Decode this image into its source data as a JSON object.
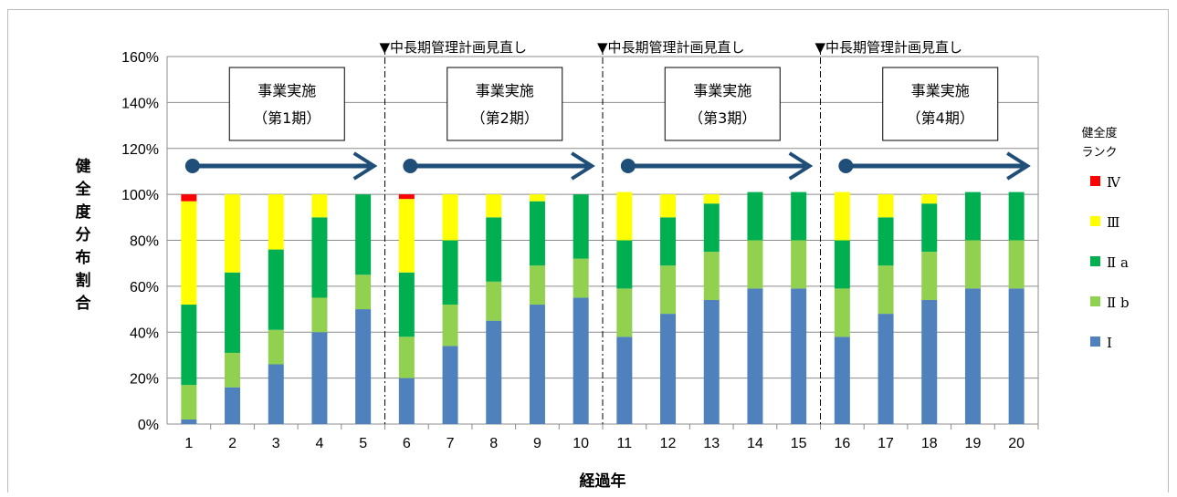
{
  "chart_data": {
    "type": "bar",
    "stacked": true,
    "title": "",
    "xlabel": "経過年",
    "ylabel": "健全度分布割合",
    "ylim": [
      0,
      160
    ],
    "yticks": [
      "0%",
      "20%",
      "40%",
      "60%",
      "80%",
      "100%",
      "120%",
      "140%",
      "160%"
    ],
    "grid": true,
    "legend_position": "right",
    "categories": [
      "1",
      "2",
      "3",
      "4",
      "5",
      "6",
      "7",
      "8",
      "9",
      "10",
      "11",
      "12",
      "13",
      "14",
      "15",
      "16",
      "17",
      "18",
      "19",
      "20"
    ],
    "series": [
      {
        "name": "Ⅰ",
        "color": "#4f81bd",
        "values": [
          2,
          16,
          26,
          40,
          50,
          20,
          34,
          45,
          52,
          55,
          38,
          48,
          54,
          59,
          59,
          38,
          48,
          54,
          59,
          59
        ]
      },
      {
        "name": "Ⅱb",
        "color": "#92d050",
        "values": [
          15,
          15,
          15,
          15,
          15,
          18,
          18,
          17,
          17,
          17,
          21,
          21,
          21,
          21,
          21,
          21,
          21,
          21,
          21,
          21
        ]
      },
      {
        "name": "Ⅱa",
        "color": "#00b050",
        "values": [
          35,
          35,
          35,
          35,
          35,
          28,
          28,
          28,
          28,
          28,
          21,
          21,
          21,
          21,
          21,
          21,
          21,
          21,
          21,
          21
        ]
      },
      {
        "name": "Ⅲ",
        "color": "#ffff00",
        "values": [
          45,
          34,
          24,
          10,
          0,
          32,
          20,
          10,
          3,
          0,
          21,
          10,
          4,
          0,
          0,
          21,
          10,
          4,
          0,
          0
        ]
      },
      {
        "name": "Ⅳ",
        "color": "#ff0000",
        "values": [
          3,
          0,
          0,
          0,
          0,
          2,
          0,
          0,
          0,
          0,
          0,
          0,
          0,
          0,
          0,
          0,
          0,
          0,
          0,
          0
        ]
      }
    ],
    "legend": {
      "title_lines": [
        "健全度",
        "ランク"
      ],
      "order": [
        "Ⅳ",
        "Ⅲ",
        "Ⅱa",
        "Ⅱb",
        "Ⅰ"
      ],
      "labels": {
        "Ⅳ": "Ⅳ",
        "Ⅲ": "Ⅲ",
        "Ⅱa": "Ⅱ a",
        "Ⅱb": "Ⅱ b",
        "Ⅰ": "Ⅰ"
      }
    },
    "review_lines_after_years": [
      5,
      10,
      15
    ],
    "review_labels": [
      "▼中長期管理計画見直し",
      "▼中長期管理計画見直し",
      "▼中長期管理計画見直し"
    ],
    "phases": [
      {
        "line1": "事業実施",
        "line2": "（第1期）",
        "years": [
          1,
          5
        ]
      },
      {
        "line1": "事業実施",
        "line2": "（第2期）",
        "years": [
          6,
          10
        ]
      },
      {
        "line1": "事業実施",
        "line2": "（第3期）",
        "years": [
          11,
          15
        ]
      },
      {
        "line1": "事業実施",
        "line2": "（第4期）",
        "years": [
          16,
          20
        ]
      }
    ],
    "arrow_color": "#1f4e79"
  }
}
